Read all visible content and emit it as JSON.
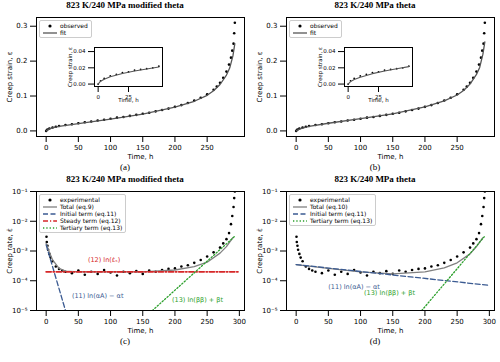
{
  "chart_data": [
    {
      "type": "line",
      "title": "823 K/240 MPa modified theta",
      "panel": "(a)",
      "xlabel": "Time, h",
      "ylabel": "Creep strain, ε",
      "xlim": [
        -15,
        308
      ],
      "ylim": [
        -0.016,
        0.325
      ],
      "xticks": [
        0,
        50,
        100,
        150,
        200,
        250
      ],
      "yticks": [
        {
          "value": 0,
          "label": "0.0"
        },
        {
          "value": 0.1,
          "label": "0.1"
        },
        {
          "value": 0.2,
          "label": "0.2"
        },
        {
          "value": 0.3,
          "label": "0.3"
        }
      ],
      "legend": "upper left",
      "series": [
        {
          "name": "observed",
          "type": "scatter",
          "marker": "circle",
          "color": "#000000",
          "x": [
            0,
            2,
            5,
            10,
            15,
            20,
            30,
            40,
            50,
            60,
            70,
            80,
            90,
            100,
            110,
            120,
            130,
            140,
            150,
            160,
            170,
            180,
            190,
            200,
            210,
            220,
            230,
            240,
            250,
            260,
            265,
            270,
            275,
            280,
            284,
            287,
            289,
            291,
            292,
            293
          ],
          "values": [
            0,
            0.004,
            0.007,
            0.01,
            0.012,
            0.014,
            0.017,
            0.019,
            0.022,
            0.025,
            0.027,
            0.03,
            0.032,
            0.035,
            0.038,
            0.04,
            0.043,
            0.046,
            0.049,
            0.052,
            0.056,
            0.06,
            0.064,
            0.069,
            0.074,
            0.08,
            0.087,
            0.095,
            0.105,
            0.118,
            0.127,
            0.138,
            0.152,
            0.17,
            0.19,
            0.21,
            0.23,
            0.25,
            0.28,
            0.31
          ]
        },
        {
          "name": "fit",
          "type": "line",
          "line_style": "solid",
          "color": "#555555",
          "x": [
            0,
            5,
            10,
            20,
            50,
            100,
            150,
            200,
            230,
            250,
            260,
            270,
            280,
            285,
            290,
            293
          ],
          "values": [
            0,
            0.006,
            0.009,
            0.013,
            0.021,
            0.034,
            0.048,
            0.068,
            0.085,
            0.102,
            0.115,
            0.133,
            0.16,
            0.18,
            0.215,
            0.25
          ]
        }
      ],
      "inset": {
        "xlabel": "Time, h",
        "ylabel": "Creep strain, ε",
        "xlim": [
          -3,
          53
        ],
        "ylim": [
          -0.003,
          0.045
        ],
        "xticks": [
          0,
          25
        ],
        "yticks": [
          {
            "value": 0,
            "label": "0.00"
          },
          {
            "value": 0.02,
            "label": "0.02"
          },
          {
            "value": 0.04,
            "label": "0.04"
          }
        ],
        "series": [
          {
            "type": "scatter",
            "marker": "circle",
            "color": "#000000",
            "x": [
              0,
              2,
              5,
              10,
              15,
              20,
              25,
              30,
              35,
              40,
              45,
              50
            ],
            "values": [
              0,
              0.004,
              0.007,
              0.01,
              0.012,
              0.014,
              0.015,
              0.017,
              0.018,
              0.019,
              0.02,
              0.022
            ]
          },
          {
            "type": "line",
            "line_style": "solid",
            "color": "#555555",
            "x": [
              0,
              2,
              5,
              10,
              20,
              30,
              40,
              50
            ],
            "values": [
              0,
              0.0035,
              0.006,
              0.009,
              0.013,
              0.016,
              0.0185,
              0.021
            ]
          }
        ]
      }
    },
    {
      "type": "line",
      "title": "823 K/240 MPa theta",
      "panel": "(b)",
      "xlabel": "Time, h",
      "ylabel": "Creep strain, ε",
      "xlim": [
        -15,
        308
      ],
      "ylim": [
        -0.016,
        0.325
      ],
      "xticks": [
        0,
        50,
        100,
        150,
        200,
        250
      ],
      "yticks": [
        {
          "value": 0,
          "label": "0.0"
        },
        {
          "value": 0.1,
          "label": "0.1"
        },
        {
          "value": 0.2,
          "label": "0.2"
        },
        {
          "value": 0.3,
          "label": "0.3"
        }
      ],
      "legend": "upper left",
      "series": [
        {
          "name": "observed",
          "type": "scatter",
          "marker": "circle",
          "color": "#000000",
          "x": [
            0,
            2,
            5,
            10,
            15,
            20,
            30,
            40,
            50,
            60,
            70,
            80,
            90,
            100,
            110,
            120,
            130,
            140,
            150,
            160,
            170,
            180,
            190,
            200,
            210,
            220,
            230,
            240,
            250,
            260,
            265,
            270,
            275,
            280,
            284,
            287,
            289,
            291,
            292,
            293
          ],
          "values": [
            0,
            0.004,
            0.007,
            0.01,
            0.012,
            0.014,
            0.017,
            0.019,
            0.022,
            0.025,
            0.027,
            0.03,
            0.032,
            0.035,
            0.038,
            0.04,
            0.043,
            0.046,
            0.049,
            0.052,
            0.056,
            0.06,
            0.064,
            0.069,
            0.074,
            0.08,
            0.087,
            0.095,
            0.105,
            0.118,
            0.127,
            0.138,
            0.152,
            0.17,
            0.19,
            0.21,
            0.23,
            0.25,
            0.28,
            0.31
          ]
        },
        {
          "name": "fit",
          "type": "line",
          "line_style": "solid",
          "color": "#555555",
          "x": [
            0,
            5,
            10,
            20,
            50,
            100,
            150,
            200,
            230,
            250,
            260,
            270,
            280,
            285,
            290,
            293
          ],
          "values": [
            0,
            0.005,
            0.008,
            0.013,
            0.022,
            0.035,
            0.049,
            0.069,
            0.086,
            0.103,
            0.116,
            0.134,
            0.162,
            0.182,
            0.22,
            0.255
          ]
        }
      ],
      "inset": {
        "xlabel": "Time, h",
        "ylabel": "Creep strain, ε",
        "xlim": [
          -3,
          53
        ],
        "ylim": [
          -0.003,
          0.045
        ],
        "xticks": [
          0,
          25
        ],
        "yticks": [
          {
            "value": 0,
            "label": "0.00"
          },
          {
            "value": 0.02,
            "label": "0.02"
          },
          {
            "value": 0.04,
            "label": "0.04"
          }
        ],
        "series": [
          {
            "type": "scatter",
            "marker": "circle",
            "color": "#000000",
            "x": [
              0,
              2,
              5,
              10,
              15,
              20,
              25,
              30,
              35,
              40,
              45,
              50
            ],
            "values": [
              0,
              0.004,
              0.007,
              0.01,
              0.012,
              0.014,
              0.015,
              0.017,
              0.018,
              0.019,
              0.02,
              0.022
            ]
          },
          {
            "type": "line",
            "line_style": "solid",
            "color": "#555555",
            "x": [
              0,
              2,
              5,
              10,
              20,
              30,
              40,
              50
            ],
            "values": [
              0,
              0.003,
              0.0055,
              0.0085,
              0.0128,
              0.016,
              0.0188,
              0.0215
            ]
          }
        ]
      }
    },
    {
      "type": "line",
      "title": "823 K/240 MPa modified theta",
      "panel": "(c)",
      "xlabel": "Time, h",
      "ylabel": "Creep rate, ε̇",
      "log": "y",
      "xlim": [
        -15,
        308
      ],
      "ylim": [
        1e-05,
        0.1
      ],
      "xticks": [
        0,
        50,
        100,
        150,
        200,
        250,
        300
      ],
      "yticks": [
        {
          "value": 1e-05,
          "label": "10⁻⁵"
        },
        {
          "value": 0.0001,
          "label": "10⁻⁴"
        },
        {
          "value": 0.001,
          "label": "10⁻³"
        },
        {
          "value": 0.01,
          "label": "10⁻²"
        },
        {
          "value": 0.1,
          "label": "10⁻¹"
        }
      ],
      "legend": "upper left",
      "series": [
        {
          "name": "experimental",
          "type": "scatter",
          "marker": "circle",
          "color": "#000000",
          "x": [
            0.5,
            1,
            2,
            3,
            5,
            7,
            10,
            15,
            20,
            25,
            30,
            40,
            50,
            60,
            70,
            80,
            90,
            100,
            110,
            120,
            130,
            140,
            150,
            160,
            170,
            180,
            190,
            200,
            210,
            220,
            230,
            240,
            250,
            260,
            270,
            275,
            280,
            284,
            287,
            289,
            291,
            292,
            293
          ],
          "values": [
            0.003,
            0.002,
            0.0015,
            0.0011,
            0.0008,
            0.0006,
            0.00045,
            0.0003,
            0.00025,
            0.00022,
            0.0002,
            0.00018,
            0.00022,
            0.00016,
            0.0002,
            0.00017,
            0.00023,
            0.00019,
            0.00015,
            0.0002,
            0.00018,
            0.00021,
            0.00017,
            0.00022,
            0.0002,
            0.00023,
            0.00025,
            0.00026,
            0.0003,
            0.00033,
            0.0004,
            0.0005,
            0.00065,
            0.0009,
            0.0013,
            0.0018,
            0.0025,
            0.004,
            0.008,
            0.015,
            0.03,
            0.06,
            0.1
          ]
        },
        {
          "name": "Total (eq.9)",
          "type": "line",
          "line_style": "solid",
          "color": "#808080",
          "x": [
            0,
            5,
            10,
            20,
            30,
            50,
            100,
            150,
            200,
            230,
            250,
            270,
            280,
            290
          ],
          "values": [
            0.0018,
            0.0009,
            0.0005,
            0.00026,
            0.00021,
            0.0002,
            0.0002,
            0.0002,
            0.00023,
            0.0003,
            0.00042,
            0.00085,
            0.0014,
            0.0028
          ]
        },
        {
          "name": "Initial term (eq.11)",
          "type": "line",
          "line_style": "dashed",
          "color": "#3b5b92",
          "x": [
            0,
            30
          ],
          "values": [
            0.0016,
            1e-05
          ]
        },
        {
          "name": "Steady term (eq.12)",
          "type": "line",
          "line_style": "dashdot",
          "color": "#d62728",
          "x": [
            0,
            300
          ],
          "values": [
            0.0002,
            0.0002
          ]
        },
        {
          "name": "Tertiary term (eq.13)",
          "type": "line",
          "line_style": "dotted",
          "color": "#2ca02c",
          "x": [
            165,
            292
          ],
          "values": [
            1e-05,
            0.003
          ]
        }
      ],
      "annotations": [
        {
          "text": "(12) ln(ε̇ₛ)",
          "x": 90,
          "y": 0.0005,
          "color": "#d62728"
        },
        {
          "text": "(11) ln(αA) − αt",
          "x": 80,
          "y": 3e-05,
          "color": "#3b5b92"
        },
        {
          "text": "(13) ln(ββ) + βt",
          "x": 235,
          "y": 2.2e-05,
          "color": "#2ca02c"
        }
      ]
    },
    {
      "type": "line",
      "title": "823 K/240 MPa theta",
      "panel": "(d)",
      "xlabel": "Time, h",
      "ylabel": "Creep rate, ε̇",
      "log": "y",
      "xlim": [
        -15,
        308
      ],
      "ylim": [
        1e-05,
        0.1
      ],
      "xticks": [
        0,
        50,
        100,
        150,
        200,
        250,
        300
      ],
      "yticks": [
        {
          "value": 1e-05,
          "label": "10⁻⁵"
        },
        {
          "value": 0.0001,
          "label": "10⁻⁴"
        },
        {
          "value": 0.001,
          "label": "10⁻³"
        },
        {
          "value": 0.01,
          "label": "10⁻²"
        },
        {
          "value": 0.1,
          "label": "10⁻¹"
        }
      ],
      "legend": "upper left",
      "series": [
        {
          "name": "experimental",
          "type": "scatter",
          "marker": "circle",
          "color": "#000000",
          "x": [
            0.5,
            1,
            2,
            3,
            5,
            7,
            10,
            15,
            20,
            25,
            30,
            40,
            50,
            60,
            70,
            80,
            90,
            100,
            110,
            120,
            130,
            140,
            150,
            160,
            170,
            180,
            190,
            200,
            210,
            220,
            230,
            240,
            250,
            260,
            270,
            275,
            280,
            284,
            287,
            289,
            291,
            292,
            293
          ],
          "values": [
            0.003,
            0.002,
            0.0015,
            0.0011,
            0.0008,
            0.0006,
            0.00045,
            0.0003,
            0.00025,
            0.00022,
            0.0002,
            0.00018,
            0.00022,
            0.00016,
            0.0002,
            0.00017,
            0.00023,
            0.00019,
            0.00015,
            0.0002,
            0.00018,
            0.00021,
            0.00017,
            0.00022,
            0.0002,
            0.00023,
            0.00025,
            0.00026,
            0.0003,
            0.00033,
            0.0004,
            0.0005,
            0.00065,
            0.0009,
            0.0013,
            0.0018,
            0.0025,
            0.004,
            0.008,
            0.015,
            0.03,
            0.06,
            0.1
          ]
        },
        {
          "name": "Total (eq.10)",
          "type": "line",
          "line_style": "solid",
          "color": "#808080",
          "x": [
            0,
            50,
            100,
            150,
            200,
            230,
            250,
            270,
            280,
            290
          ],
          "values": [
            0.00035,
            0.00026,
            0.0002,
            0.00017,
            0.0002,
            0.00027,
            0.0004,
            0.0008,
            0.0014,
            0.0028
          ]
        },
        {
          "name": "Initial term (eq.11)",
          "type": "line",
          "line_style": "dashed",
          "color": "#3b5b92",
          "x": [
            0,
            300
          ],
          "values": [
            0.00035,
            7e-05
          ]
        },
        {
          "name": "Tertiary term (eq.13)",
          "type": "line",
          "line_style": "dotted",
          "color": "#2ca02c",
          "x": [
            195,
            292
          ],
          "values": [
            1e-05,
            0.003
          ]
        }
      ],
      "annotations": [
        {
          "text": "(11) ln(αA) − αt",
          "x": 90,
          "y": 6e-05,
          "color": "#3b5b92"
        },
        {
          "text": "(13) ln(ββ) + βt",
          "x": 145,
          "y": 4e-05,
          "color": "#2ca02c"
        }
      ]
    }
  ]
}
